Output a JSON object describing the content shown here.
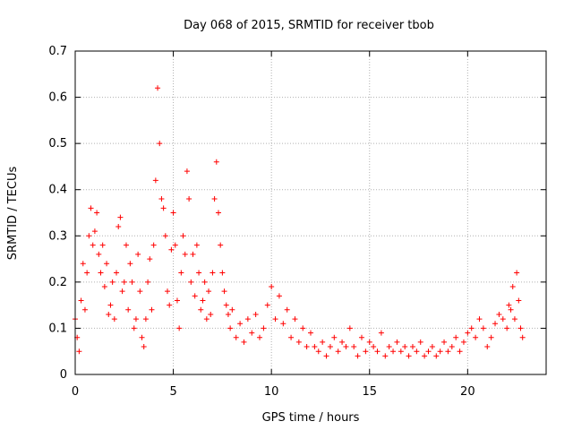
{
  "chart_data": {
    "type": "scatter",
    "title": "Day 068 of 2015, SRMTID for receiver tbob",
    "xlabel": "GPS time / hours",
    "ylabel": "SRMTID / TECUs",
    "xlim": [
      0,
      24
    ],
    "ylim": [
      0,
      0.7
    ],
    "xticks": [
      0,
      5,
      10,
      15,
      20
    ],
    "xtick_labels": [
      "0",
      "5",
      "10",
      "15",
      "20"
    ],
    "yticks": [
      0,
      0.1,
      0.2,
      0.3,
      0.4,
      0.5,
      0.6,
      0.7
    ],
    "ytick_labels": [
      "0",
      "0.1",
      "0.2",
      "0.3",
      "0.4",
      "0.5",
      "0.6",
      "0.7"
    ],
    "grid": true,
    "marker": "+",
    "color": "#ff0000",
    "series": [
      {
        "name": "SRMTID",
        "x": [
          0.0,
          0.1,
          0.2,
          0.3,
          0.4,
          0.5,
          0.6,
          0.7,
          0.8,
          0.9,
          1.0,
          1.1,
          1.2,
          1.3,
          1.4,
          1.5,
          1.6,
          1.7,
          1.8,
          1.9,
          2.0,
          2.1,
          2.2,
          2.3,
          2.4,
          2.5,
          2.6,
          2.7,
          2.8,
          2.9,
          3.0,
          3.1,
          3.2,
          3.3,
          3.4,
          3.5,
          3.6,
          3.7,
          3.8,
          3.9,
          4.0,
          4.1,
          4.2,
          4.3,
          4.4,
          4.5,
          4.6,
          4.7,
          4.8,
          4.9,
          5.0,
          5.1,
          5.2,
          5.3,
          5.4,
          5.5,
          5.6,
          5.7,
          5.8,
          5.9,
          6.0,
          6.1,
          6.2,
          6.3,
          6.4,
          6.5,
          6.6,
          6.7,
          6.8,
          6.9,
          7.0,
          7.1,
          7.2,
          7.3,
          7.4,
          7.5,
          7.6,
          7.7,
          7.8,
          7.9,
          8.0,
          8.2,
          8.4,
          8.6,
          8.8,
          9.0,
          9.2,
          9.4,
          9.6,
          9.8,
          10.0,
          10.2,
          10.4,
          10.6,
          10.8,
          11.0,
          11.2,
          11.4,
          11.6,
          11.8,
          12.0,
          12.2,
          12.4,
          12.6,
          12.8,
          13.0,
          13.2,
          13.4,
          13.6,
          13.8,
          14.0,
          14.2,
          14.4,
          14.6,
          14.8,
          15.0,
          15.2,
          15.4,
          15.6,
          15.8,
          16.0,
          16.2,
          16.4,
          16.6,
          16.8,
          17.0,
          17.2,
          17.4,
          17.6,
          17.8,
          18.0,
          18.2,
          18.4,
          18.6,
          18.8,
          19.0,
          19.2,
          19.4,
          19.6,
          19.8,
          20.0,
          20.2,
          20.4,
          20.6,
          20.8,
          21.0,
          21.2,
          21.4,
          21.6,
          21.8,
          22.0,
          22.1,
          22.2,
          22.3,
          22.4,
          22.5,
          22.6,
          22.7,
          22.8
        ],
        "values": [
          0.12,
          0.08,
          0.05,
          0.16,
          0.24,
          0.14,
          0.22,
          0.3,
          0.36,
          0.28,
          0.31,
          0.35,
          0.26,
          0.22,
          0.28,
          0.19,
          0.24,
          0.13,
          0.15,
          0.2,
          0.12,
          0.22,
          0.32,
          0.34,
          0.18,
          0.2,
          0.28,
          0.14,
          0.24,
          0.2,
          0.1,
          0.12,
          0.26,
          0.18,
          0.08,
          0.06,
          0.12,
          0.2,
          0.25,
          0.14,
          0.28,
          0.42,
          0.62,
          0.5,
          0.38,
          0.36,
          0.3,
          0.18,
          0.15,
          0.27,
          0.35,
          0.28,
          0.16,
          0.1,
          0.22,
          0.3,
          0.26,
          0.44,
          0.38,
          0.2,
          0.26,
          0.17,
          0.28,
          0.22,
          0.14,
          0.16,
          0.2,
          0.12,
          0.18,
          0.13,
          0.22,
          0.38,
          0.46,
          0.35,
          0.28,
          0.22,
          0.18,
          0.15,
          0.13,
          0.1,
          0.14,
          0.08,
          0.11,
          0.07,
          0.12,
          0.09,
          0.13,
          0.08,
          0.1,
          0.15,
          0.19,
          0.12,
          0.17,
          0.11,
          0.14,
          0.08,
          0.12,
          0.07,
          0.1,
          0.06,
          0.09,
          0.06,
          0.05,
          0.07,
          0.04,
          0.06,
          0.08,
          0.05,
          0.07,
          0.06,
          0.1,
          0.06,
          0.04,
          0.08,
          0.05,
          0.07,
          0.06,
          0.05,
          0.09,
          0.04,
          0.06,
          0.05,
          0.07,
          0.05,
          0.06,
          0.04,
          0.06,
          0.05,
          0.07,
          0.04,
          0.05,
          0.06,
          0.04,
          0.05,
          0.07,
          0.05,
          0.06,
          0.08,
          0.05,
          0.07,
          0.09,
          0.1,
          0.08,
          0.12,
          0.1,
          0.06,
          0.08,
          0.11,
          0.13,
          0.12,
          0.1,
          0.15,
          0.14,
          0.19,
          0.12,
          0.22,
          0.16,
          0.1,
          0.08
        ]
      }
    ]
  }
}
